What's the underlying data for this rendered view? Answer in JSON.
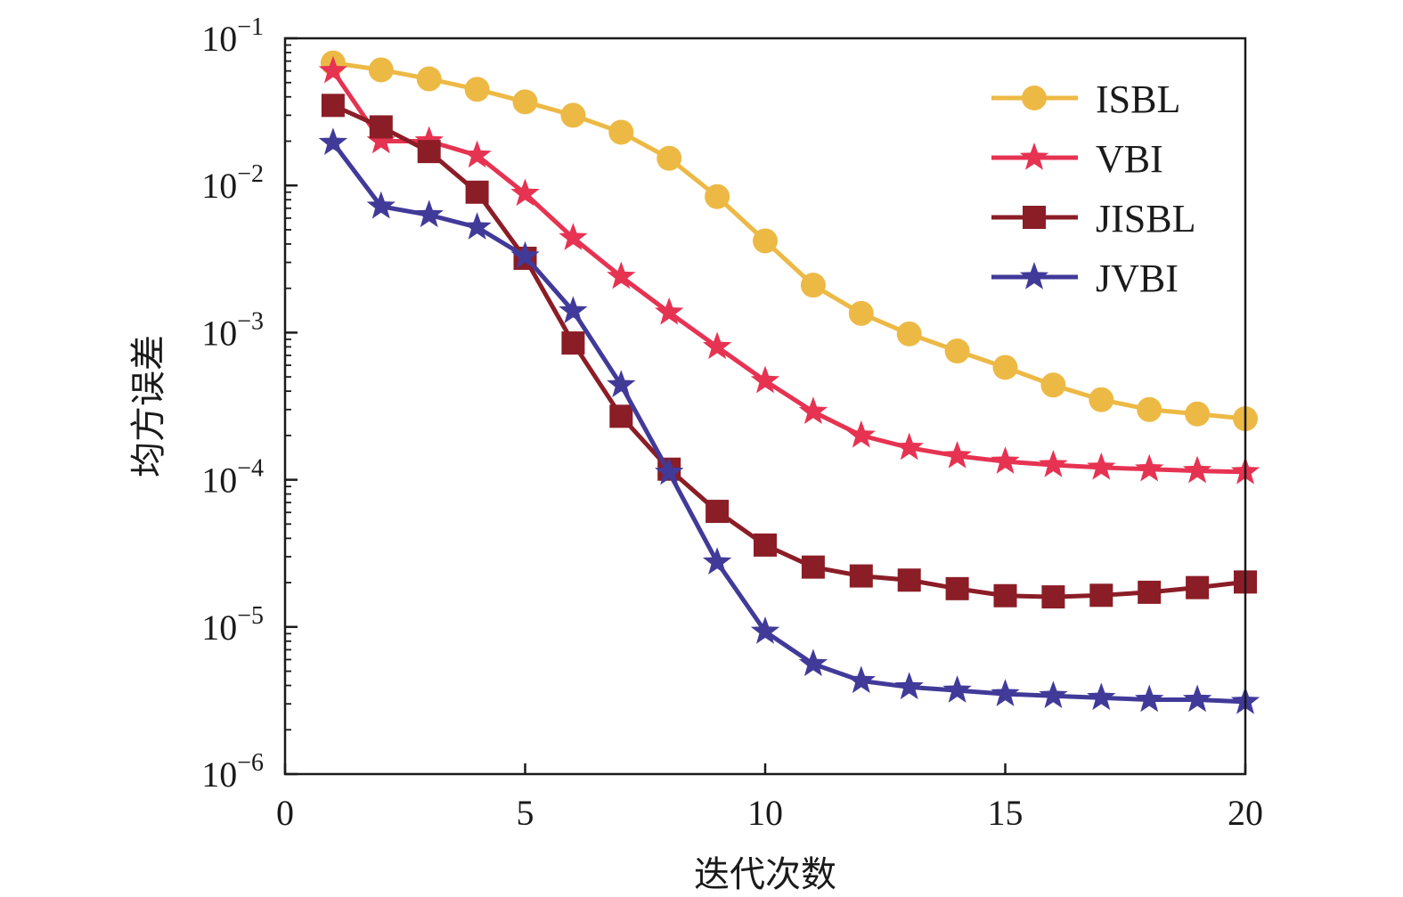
{
  "chart_data": {
    "type": "line",
    "xlabel": "迭代次数",
    "ylabel": "均方误差",
    "xlim": [
      0,
      20
    ],
    "ylim": [
      1e-06,
      0.1
    ],
    "yscale": "log",
    "x_ticks": [
      0,
      5,
      10,
      15,
      20
    ],
    "y_ticks": [
      {
        "base": "10",
        "exp": "−6",
        "value": 1e-06
      },
      {
        "base": "10",
        "exp": "−5",
        "value": 1e-05
      },
      {
        "base": "10",
        "exp": "−4",
        "value": 0.0001
      },
      {
        "base": "10",
        "exp": "−3",
        "value": 0.001
      },
      {
        "base": "10",
        "exp": "−2",
        "value": 0.01
      },
      {
        "base": "10",
        "exp": "−1",
        "value": 0.1
      }
    ],
    "grid": false,
    "legend_position": "top-right",
    "x": [
      1,
      2,
      3,
      4,
      5,
      6,
      7,
      8,
      9,
      10,
      11,
      12,
      13,
      14,
      15,
      16,
      17,
      18,
      19,
      20
    ],
    "series": [
      {
        "name": "ISBL",
        "color": "#EDB945",
        "marker": "circle",
        "values": [
          0.068,
          0.061,
          0.053,
          0.045,
          0.037,
          0.03,
          0.023,
          0.0153,
          0.0084,
          0.0042,
          0.0021,
          0.00135,
          0.00098,
          0.00075,
          0.00058,
          0.00044,
          0.00035,
          0.0003,
          0.00028,
          0.00026
        ]
      },
      {
        "name": "VBI",
        "color": "#E63352",
        "marker": "star",
        "values": [
          0.06,
          0.02,
          0.02,
          0.016,
          0.0088,
          0.0044,
          0.0024,
          0.00137,
          0.0008,
          0.00047,
          0.00029,
          0.0002,
          0.000165,
          0.000145,
          0.000133,
          0.000126,
          0.000121,
          0.000118,
          0.000115,
          0.000113
        ]
      },
      {
        "name": "JISBL",
        "color": "#8B1D26",
        "marker": "square",
        "values": [
          0.035,
          0.025,
          0.017,
          0.009,
          0.0032,
          0.00085,
          0.00027,
          0.000118,
          6.1e-05,
          3.6e-05,
          2.55e-05,
          2.22e-05,
          2.08e-05,
          1.82e-05,
          1.63e-05,
          1.6e-05,
          1.64e-05,
          1.72e-05,
          1.85e-05,
          2.02e-05
        ]
      },
      {
        "name": "JVBI",
        "color": "#413A99",
        "marker": "star",
        "values": [
          0.0195,
          0.0072,
          0.0063,
          0.0052,
          0.0033,
          0.0014,
          0.00044,
          0.000112,
          2.75e-05,
          9.3e-06,
          5.6e-06,
          4.3e-06,
          3.9e-06,
          3.7e-06,
          3.5e-06,
          3.4e-06,
          3.3e-06,
          3.2e-06,
          3.2e-06,
          3.1e-06
        ]
      }
    ]
  }
}
